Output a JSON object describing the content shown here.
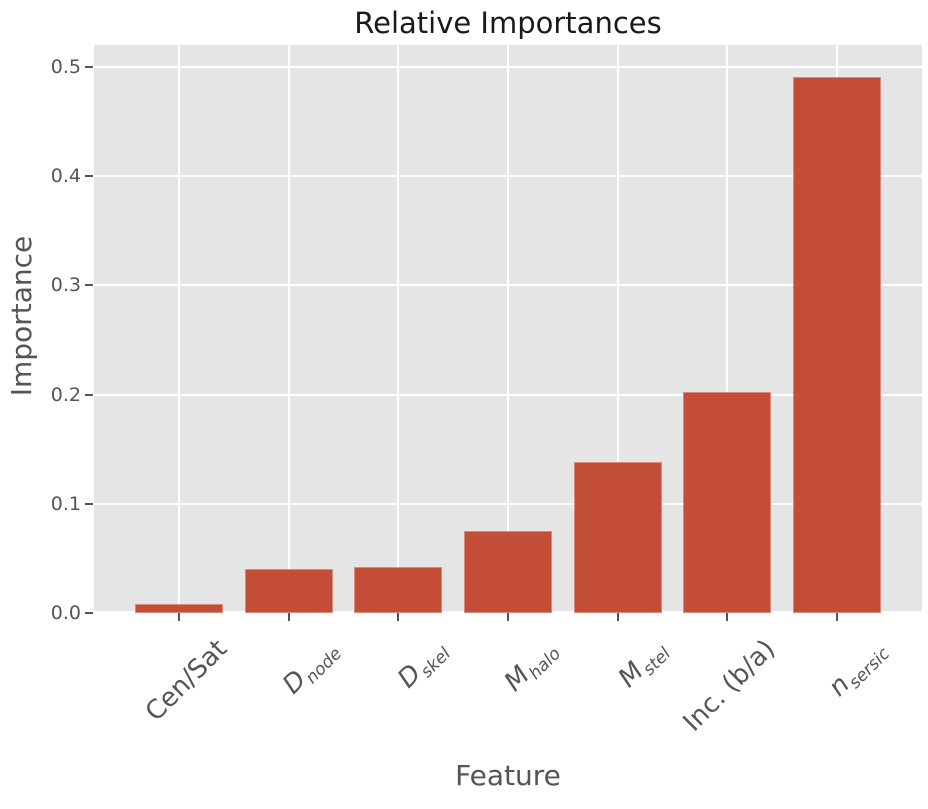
{
  "chart_data": {
    "type": "bar",
    "title": "Relative Importances",
    "xlabel": "Feature",
    "ylabel": "Importance",
    "categories": [
      "Cen/Sat",
      "D_node",
      "D_skel",
      "M_halo",
      "M_stel",
      "Inc. (b/a)",
      "n_sersic"
    ],
    "categories_rich": [
      {
        "base": "Cen/Sat",
        "sub": "",
        "math": false
      },
      {
        "base": "D",
        "sub": "node",
        "math": true
      },
      {
        "base": "D",
        "sub": "skel",
        "math": true
      },
      {
        "base": "M",
        "sub": "halo",
        "math": true
      },
      {
        "base": "M",
        "sub": "stel",
        "math": true
      },
      {
        "base": "Inc. (b/a)",
        "sub": "",
        "math": false
      },
      {
        "base": "n",
        "sub": "sersic",
        "math": true
      }
    ],
    "values": [
      0.008,
      0.04,
      0.042,
      0.075,
      0.138,
      0.202,
      0.491
    ],
    "yticks": [
      0.0,
      0.1,
      0.2,
      0.3,
      0.4,
      0.5
    ],
    "ytick_labels": [
      "0.0",
      "0.1",
      "0.2",
      "0.3",
      "0.4",
      "0.5"
    ],
    "ylim": [
      0,
      0.52
    ],
    "xtick_rotation_deg": 45,
    "grid": "both",
    "legend": "none",
    "colors": {
      "bar": "#C44D38",
      "plot_background": "#E5E5E5",
      "grid": "#FFFFFF",
      "tick_label": "#555555",
      "axis_label": "#555555",
      "title": "#1A1A1A",
      "tick_mark": "#555555",
      "figure_background": "#FFFFFF"
    }
  }
}
